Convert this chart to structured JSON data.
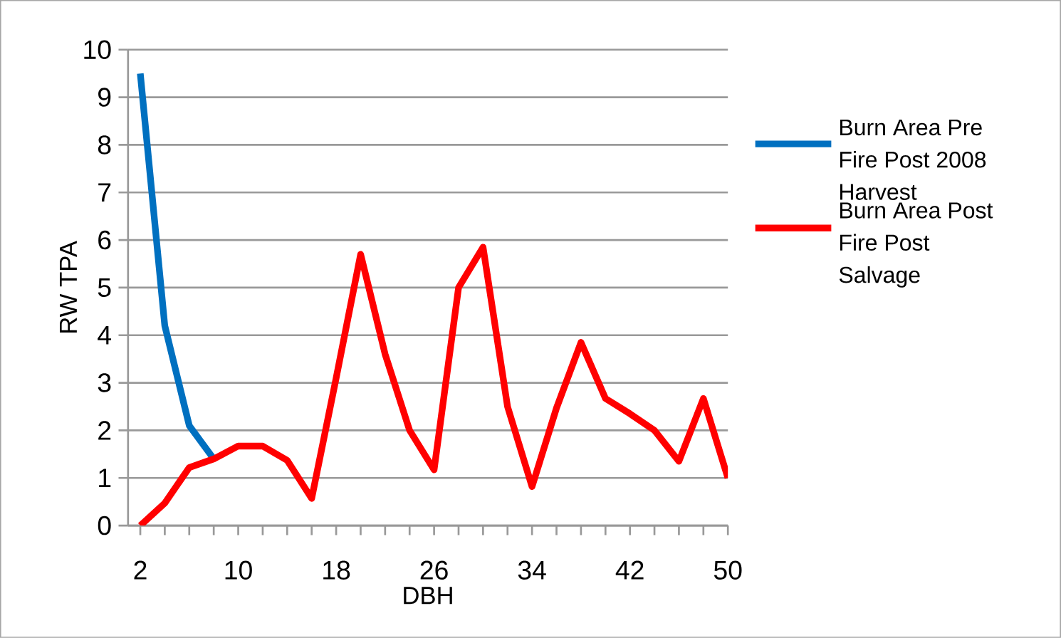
{
  "chart_data": {
    "type": "line",
    "xlabel": "DBH",
    "ylabel": "RW TPA",
    "x": [
      2,
      4,
      6,
      8,
      10,
      12,
      14,
      16,
      18,
      20,
      22,
      24,
      26,
      28,
      30,
      32,
      34,
      36,
      38,
      40,
      42,
      44,
      46,
      48,
      50
    ],
    "series": [
      {
        "name": "Burn Area Pre Fire Post 2008 Harvest",
        "color": "#0070c0",
        "values": [
          9.5,
          4.2,
          2.1,
          1.4,
          null,
          null,
          null,
          null,
          null,
          null,
          null,
          null,
          null,
          null,
          null,
          null,
          null,
          null,
          null,
          null,
          null,
          null,
          null,
          null,
          null
        ]
      },
      {
        "name": "Burn Area Post Fire Post Salvage",
        "color": "#ff0000",
        "values": [
          0,
          0.47,
          1.22,
          1.4,
          1.67,
          1.67,
          1.37,
          0.57,
          3.1,
          5.7,
          3.6,
          2.0,
          1.17,
          5.0,
          5.85,
          2.5,
          0.82,
          2.47,
          3.85,
          2.67,
          2.35,
          2.0,
          1.35,
          2.67,
          1.0
        ]
      }
    ],
    "xlim": [
      1,
      50
    ],
    "ylim": [
      0,
      10
    ],
    "xticks": [
      2,
      {
        "value": 4,
        "label": null
      },
      {
        "value": 6,
        "label": null
      },
      {
        "value": 8,
        "label": null
      },
      10,
      {
        "value": 12,
        "label": null
      },
      {
        "value": 14,
        "label": null
      },
      {
        "value": 16,
        "label": null
      },
      18,
      {
        "value": 20,
        "label": null
      },
      {
        "value": 22,
        "label": null
      },
      {
        "value": 24,
        "label": null
      },
      26,
      {
        "value": 28,
        "label": null
      },
      {
        "value": 30,
        "label": null
      },
      {
        "value": 32,
        "label": null
      },
      34,
      {
        "value": 36,
        "label": null
      },
      {
        "value": 38,
        "label": null
      },
      {
        "value": 40,
        "label": null
      },
      42,
      {
        "value": 44,
        "label": null
      },
      {
        "value": 46,
        "label": null
      },
      {
        "value": 48,
        "label": null
      },
      50
    ],
    "yticks": [
      0,
      1,
      2,
      3,
      4,
      5,
      6,
      7,
      8,
      9,
      10
    ],
    "grid": "y",
    "legend": "right",
    "line_style": "solid",
    "marker": "none"
  }
}
